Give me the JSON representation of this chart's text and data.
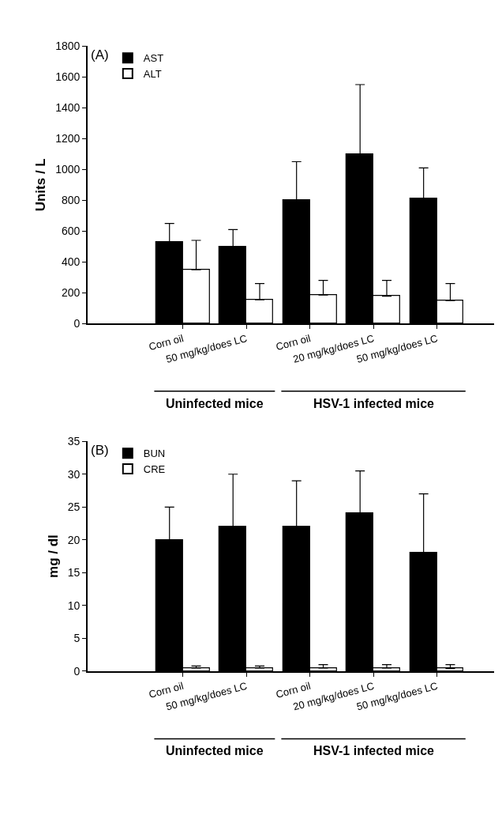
{
  "chart_data": [
    {
      "type": "bar",
      "title": "(A)",
      "ylabel": "Units / L",
      "categories": [
        "Corn oil",
        "50 mg/kg/does LC",
        "Corn oil",
        "20 mg/kg/does LC",
        "50 mg/kg/does LC"
      ],
      "series": [
        {
          "name": "AST",
          "color": "#000000",
          "values": [
            530,
            500,
            800,
            1100,
            810
          ],
          "errors": [
            [
              530,
              650
            ],
            [
              500,
              610
            ],
            [
              800,
              1050
            ],
            [
              1100,
              1550
            ],
            [
              810,
              1010
            ]
          ]
        },
        {
          "name": "ALT",
          "color": "#ffffff",
          "values": [
            350,
            155,
            185,
            178,
            150
          ],
          "errors": [
            [
              350,
              540
            ],
            [
              155,
              260
            ],
            [
              185,
              280
            ],
            [
              178,
              280
            ],
            [
              150,
              260
            ]
          ]
        }
      ],
      "ylim": [
        0,
        1800
      ],
      "yticks": [
        0,
        200,
        400,
        600,
        800,
        1000,
        1200,
        1400,
        1600,
        1800
      ],
      "legend": "top left",
      "annotations": [
        "Uninfected mice",
        "HSV-1 infected mice"
      ]
    },
    {
      "type": "bar",
      "title": "(B)",
      "ylabel": "mg / dl",
      "categories": [
        "Corn oil",
        "50 mg/kg/does LC",
        "Corn oil",
        "20 mg/kg/does LC",
        "50 mg/kg/does LC"
      ],
      "series": [
        {
          "name": "BUN",
          "color": "#000000",
          "values": [
            20,
            22,
            22,
            24,
            18
          ],
          "errors": [
            [
              20,
              25
            ],
            [
              22,
              30
            ],
            [
              22,
              29
            ],
            [
              24,
              30.5
            ],
            [
              18,
              27
            ]
          ]
        },
        {
          "name": "CRE",
          "color": "#ffffff",
          "values": [
            0.5,
            0.5,
            0.5,
            0.5,
            0.4
          ],
          "errors": [
            [
              0.5,
              0.8
            ],
            [
              0.5,
              0.8
            ],
            [
              0.5,
              1.0
            ],
            [
              0.5,
              1.0
            ],
            [
              0.4,
              1.0
            ]
          ]
        }
      ],
      "ylim": [
        0,
        35
      ],
      "yticks": [
        0,
        5,
        10,
        15,
        20,
        25,
        30,
        35
      ],
      "legend": "top left",
      "annotations": [
        "Uninfected mice",
        "HSV-1 infected mice"
      ]
    }
  ]
}
